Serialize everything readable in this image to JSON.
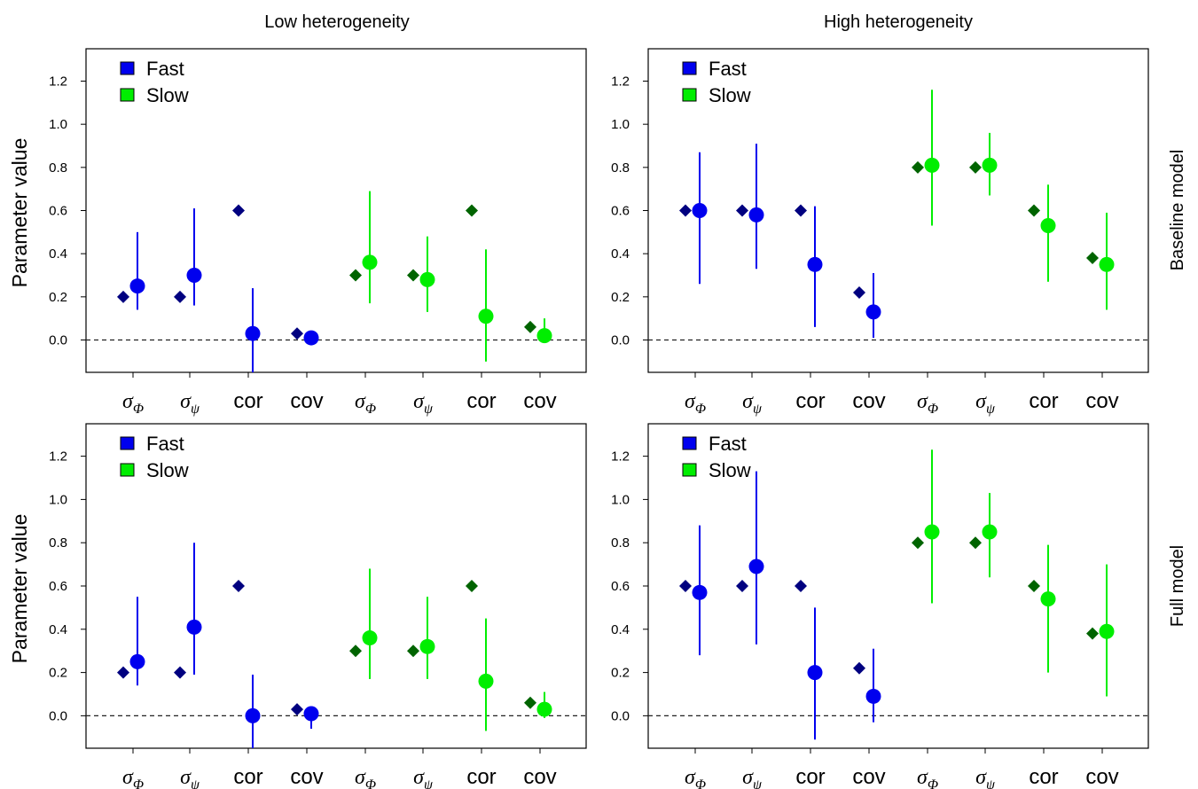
{
  "figure": {
    "column_titles": [
      "Low heterogeneity",
      "High heterogeneity"
    ],
    "row_labels": [
      "Baseline model",
      "Full model"
    ],
    "ylabel": "Parameter value",
    "legend": [
      {
        "label": "Fast",
        "color": "#0000ee"
      },
      {
        "label": "Slow",
        "color": "#00ee00"
      }
    ],
    "true_value_colors": {
      "Fast": "#000080",
      "Slow": "#006400"
    },
    "x_tick_labels": [
      {
        "greek": "σ",
        "sub": "Φ"
      },
      {
        "greek": "σ",
        "sub": "ψ"
      },
      {
        "text": "cor"
      },
      {
        "text": "cov"
      },
      {
        "greek": "σ",
        "sub": "Φ"
      },
      {
        "greek": "σ",
        "sub": "ψ"
      },
      {
        "text": "cor"
      },
      {
        "text": "cov"
      }
    ]
  },
  "chart_data": [
    {
      "type": "scatter",
      "panel": "Low heterogeneity / Baseline model",
      "ylim": [
        -0.15,
        1.35
      ],
      "yticks": [
        "0.0",
        "0.2",
        "0.4",
        "0.6",
        "0.8",
        "1.0",
        "1.2"
      ],
      "reference_line": 0,
      "series": [
        {
          "name": "Fast",
          "positions": [
            1,
            2,
            3,
            4
          ],
          "true": [
            0.2,
            0.2,
            0.6,
            0.03
          ],
          "estimate": [
            0.25,
            0.3,
            0.03,
            0.01
          ],
          "lower": [
            0.14,
            0.16,
            -0.15,
            -0.01
          ],
          "upper": [
            0.5,
            0.61,
            0.24,
            0.03
          ]
        },
        {
          "name": "Slow",
          "positions": [
            5,
            6,
            7,
            8
          ],
          "true": [
            0.3,
            0.3,
            0.6,
            0.06
          ],
          "estimate": [
            0.36,
            0.28,
            0.11,
            0.02
          ],
          "lower": [
            0.17,
            0.13,
            -0.1,
            -0.01
          ],
          "upper": [
            0.69,
            0.48,
            0.42,
            0.1
          ]
        }
      ]
    },
    {
      "type": "scatter",
      "panel": "High heterogeneity / Baseline model",
      "ylim": [
        -0.15,
        1.35
      ],
      "yticks": [
        "0.0",
        "0.2",
        "0.4",
        "0.6",
        "0.8",
        "1.0",
        "1.2"
      ],
      "reference_line": 0,
      "series": [
        {
          "name": "Fast",
          "positions": [
            1,
            2,
            3,
            4
          ],
          "true": [
            0.6,
            0.6,
            0.6,
            0.22
          ],
          "estimate": [
            0.6,
            0.58,
            0.35,
            0.13
          ],
          "lower": [
            0.26,
            0.33,
            0.06,
            0.01
          ],
          "upper": [
            0.87,
            0.91,
            0.62,
            0.31
          ]
        },
        {
          "name": "Slow",
          "positions": [
            5,
            6,
            7,
            8
          ],
          "true": [
            0.8,
            0.8,
            0.6,
            0.38
          ],
          "estimate": [
            0.81,
            0.81,
            0.53,
            0.35
          ],
          "lower": [
            0.53,
            0.67,
            0.27,
            0.14
          ],
          "upper": [
            1.16,
            0.96,
            0.72,
            0.59
          ]
        }
      ]
    },
    {
      "type": "scatter",
      "panel": "Low heterogeneity / Full model",
      "ylim": [
        -0.15,
        1.35
      ],
      "yticks": [
        "0.0",
        "0.2",
        "0.4",
        "0.6",
        "0.8",
        "1.0",
        "1.2"
      ],
      "reference_line": 0,
      "series": [
        {
          "name": "Fast",
          "positions": [
            1,
            2,
            3,
            4
          ],
          "true": [
            0.2,
            0.2,
            0.6,
            0.03
          ],
          "estimate": [
            0.25,
            0.41,
            0.0,
            0.01
          ],
          "lower": [
            0.14,
            0.19,
            -0.15,
            -0.06
          ],
          "upper": [
            0.55,
            0.8,
            0.19,
            0.04
          ]
        },
        {
          "name": "Slow",
          "positions": [
            5,
            6,
            7,
            8
          ],
          "true": [
            0.3,
            0.3,
            0.6,
            0.06
          ],
          "estimate": [
            0.36,
            0.32,
            0.16,
            0.03
          ],
          "lower": [
            0.17,
            0.17,
            -0.07,
            -0.01
          ],
          "upper": [
            0.68,
            0.55,
            0.45,
            0.11
          ]
        }
      ]
    },
    {
      "type": "scatter",
      "panel": "High heterogeneity / Full model",
      "ylim": [
        -0.15,
        1.35
      ],
      "yticks": [
        "0.0",
        "0.2",
        "0.4",
        "0.6",
        "0.8",
        "1.0",
        "1.2"
      ],
      "reference_line": 0,
      "series": [
        {
          "name": "Fast",
          "positions": [
            1,
            2,
            3,
            4
          ],
          "true": [
            0.6,
            0.6,
            0.6,
            0.22
          ],
          "estimate": [
            0.57,
            0.69,
            0.2,
            0.09
          ],
          "lower": [
            0.28,
            0.33,
            -0.11,
            -0.03
          ],
          "upper": [
            0.88,
            1.13,
            0.5,
            0.31
          ]
        },
        {
          "name": "Slow",
          "positions": [
            5,
            6,
            7,
            8
          ],
          "true": [
            0.8,
            0.8,
            0.6,
            0.38
          ],
          "estimate": [
            0.85,
            0.85,
            0.54,
            0.39
          ],
          "lower": [
            0.52,
            0.64,
            0.2,
            0.09
          ],
          "upper": [
            1.23,
            1.03,
            0.79,
            0.7
          ]
        }
      ]
    }
  ]
}
